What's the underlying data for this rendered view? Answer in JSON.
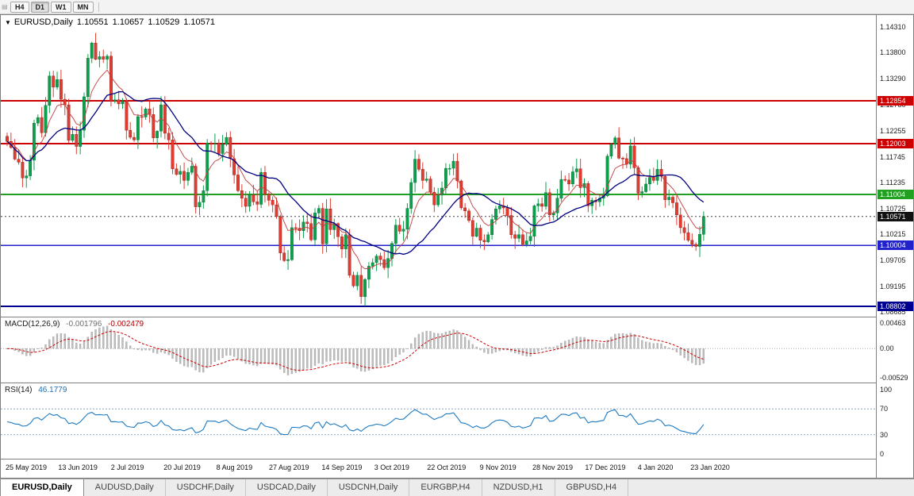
{
  "toolbar": {
    "timeframes": [
      "H4",
      "D1",
      "W1",
      "MN"
    ],
    "active": "D1"
  },
  "chart_header": {
    "symbol_period": "EURUSD,Daily",
    "open": "1.10551",
    "high": "1.10657",
    "low": "1.10529",
    "close": "1.10571"
  },
  "indicator_labels": {
    "macd_name": "MACD(12,26,9)",
    "macd_main": "-0.001796",
    "macd_signal": "-0.002479",
    "rsi_name": "RSI(14)",
    "rsi_value": "46.1779"
  },
  "tabs": [
    {
      "label": "EURUSD,Daily",
      "active": true
    },
    {
      "label": "AUDUSD,Daily",
      "active": false
    },
    {
      "label": "USDCHF,Daily",
      "active": false
    },
    {
      "label": "USDCAD,Daily",
      "active": false
    },
    {
      "label": "USDCNH,Daily",
      "active": false
    },
    {
      "label": "EURGBP,H4",
      "active": false
    },
    {
      "label": "NZDUSD,H1",
      "active": false
    },
    {
      "label": "GBPUSD,H4",
      "active": false
    }
  ],
  "chart_data": {
    "type": "candlestick",
    "symbol": "EURUSD",
    "timeframe": "Daily",
    "title": "EURUSD,Daily 1.10551 1.10657 1.10529 1.10571",
    "x_labels": [
      "25 May 2019",
      "13 Jun 2019",
      "2 Jul 2019",
      "20 Jul 2019",
      "8 Aug 2019",
      "27 Aug 2019",
      "14 Sep 2019",
      "3 Oct 2019",
      "22 Oct 2019",
      "9 Nov 2019",
      "28 Nov 2019",
      "17 Dec 2019",
      "4 Jan 2020",
      "23 Jan 2020"
    ],
    "price_ylim": [
      1.0858,
      1.1454
    ],
    "price_axis_ticks": [
      1.1431,
      1.138,
      1.1329,
      1.1278,
      1.12255,
      1.11745,
      1.11235,
      1.10725,
      1.10215,
      1.09705,
      1.09195,
      1.08685
    ],
    "price_badges": [
      {
        "value": "1.12854",
        "price": 1.12854,
        "color": "#cc0000"
      },
      {
        "value": "1.12003",
        "price": 1.12003,
        "color": "#cc0000"
      },
      {
        "value": "1.11004",
        "price": 1.11004,
        "color": "#22a022"
      },
      {
        "value": "1.10571",
        "price": 1.10571,
        "color": "#111111"
      },
      {
        "value": "1.10004",
        "price": 1.10004,
        "color": "#2222cc"
      },
      {
        "value": "1.08802",
        "price": 1.08802,
        "color": "#000090"
      }
    ],
    "levels": [
      {
        "price": 1.12854,
        "color": "#cc0000",
        "width": 2
      },
      {
        "price": 1.12003,
        "color": "#cc0000",
        "width": 2
      },
      {
        "price": 1.11004,
        "color": "#22a022",
        "width": 2
      },
      {
        "price": 1.10004,
        "color": "#2222cc",
        "width": 1.5
      },
      {
        "price": 1.08802,
        "color": "#000090",
        "width": 2
      }
    ],
    "current_price": 1.10571,
    "first_open": 1.1215,
    "closes": [
      1.1205,
      1.1193,
      1.117,
      1.1164,
      1.1133,
      1.1137,
      1.1168,
      1.1241,
      1.1252,
      1.1222,
      1.1276,
      1.1334,
      1.1312,
      1.1327,
      1.1288,
      1.1277,
      1.1207,
      1.1219,
      1.1195,
      1.1227,
      1.1293,
      1.1369,
      1.1399,
      1.1367,
      1.1372,
      1.1367,
      1.1373,
      1.1285,
      1.1287,
      1.1279,
      1.1283,
      1.1227,
      1.1213,
      1.1208,
      1.1254,
      1.1253,
      1.1269,
      1.1258,
      1.1212,
      1.1225,
      1.1277,
      1.1221,
      1.1208,
      1.1151,
      1.114,
      1.1146,
      1.1128,
      1.1144,
      1.1156,
      1.1076,
      1.1085,
      1.1108,
      1.1202,
      1.12,
      1.1201,
      1.1181,
      1.1199,
      1.1213,
      1.1171,
      1.1139,
      1.1108,
      1.1093,
      1.1077,
      1.11,
      1.1086,
      1.1081,
      1.1144,
      1.1101,
      1.1089,
      1.108,
      1.1057,
      1.0985,
      1.097,
      1.0972,
      1.1035,
      1.1034,
      1.1029,
      1.1046,
      1.1043,
      1.1011,
      1.1064,
      1.1073,
      1.1003,
      1.1072,
      1.1031,
      1.1043,
      1.1017,
      1.0993,
      1.1021,
      1.0941,
      1.092,
      1.0941,
      1.0899,
      1.0933,
      1.0959,
      1.0966,
      1.0979,
      1.0972,
      1.0956,
      1.0974,
      1.1004,
      1.104,
      1.1028,
      1.1032,
      1.1073,
      1.1124,
      1.117,
      1.115,
      1.1128,
      1.1131,
      1.1105,
      1.108,
      1.11,
      1.1113,
      1.1152,
      1.1152,
      1.1166,
      1.1127,
      1.1074,
      1.1068,
      1.1049,
      1.1018,
      1.1034,
      1.101,
      1.1007,
      1.1021,
      1.1051,
      1.1072,
      1.1078,
      1.1074,
      1.1059,
      1.1021,
      1.1014,
      1.1021,
      1.1002,
      1.1009,
      1.1018,
      1.1078,
      1.1082,
      1.1077,
      1.1104,
      1.106,
      1.1064,
      1.1093,
      1.113,
      1.1129,
      1.1121,
      1.1145,
      1.1151,
      1.1114,
      1.1122,
      1.1078,
      1.1089,
      1.1086,
      1.1093,
      1.1098,
      1.1176,
      1.1199,
      1.1212,
      1.1172,
      1.1171,
      1.116,
      1.1196,
      1.1153,
      1.1103,
      1.1106,
      1.1121,
      1.1134,
      1.1128,
      1.115,
      1.1136,
      1.109,
      1.1095,
      1.1084,
      1.106,
      1.1035,
      1.1025,
      1.101,
      1.1002,
      1.0998,
      1.1022,
      1.1057
    ],
    "moving_averages": [
      {
        "period": 8,
        "type": "ema",
        "color": "#c43c3c"
      },
      {
        "period": 20,
        "type": "sma",
        "color": "#000080"
      }
    ],
    "macd": {
      "fast": 12,
      "slow": 26,
      "signal": 9,
      "main_last": -0.001796,
      "signal_last": -0.002479,
      "ylim": [
        -0.0063,
        0.0055
      ],
      "axis_ticks": [
        {
          "v": 0.00463,
          "label": "0.00463"
        },
        {
          "v": 0,
          "label": "0.00"
        },
        {
          "v": -0.00529,
          "label": "-0.00529"
        }
      ],
      "hist_color": "#bcbcbc",
      "signal_color": "#cc0000"
    },
    "rsi": {
      "period": 14,
      "last": 46.1779,
      "ylim": [
        0,
        100
      ],
      "levels": [
        70,
        30
      ],
      "axis_ticks": [
        {
          "v": 100,
          "label": "100"
        },
        {
          "v": 70,
          "label": "70"
        },
        {
          "v": 30,
          "label": "30"
        },
        {
          "v": 0,
          "label": "0"
        }
      ],
      "line_color": "#1c7ac2"
    },
    "colors": {
      "up": "#0ca04c",
      "up_dark": "#056a34",
      "down": "#e03c32",
      "down_dark": "#8c1a12",
      "current_price_line": "#444444"
    }
  }
}
